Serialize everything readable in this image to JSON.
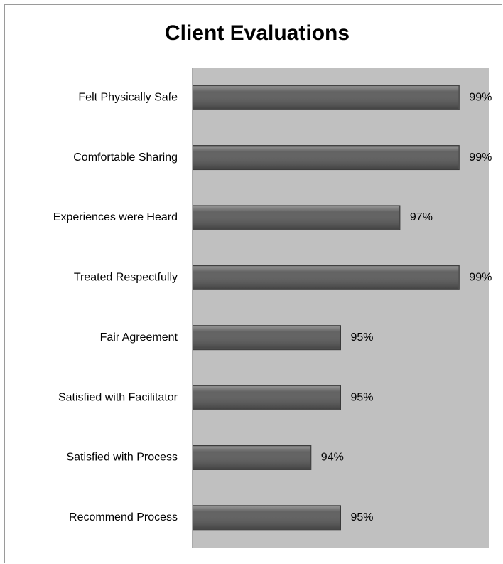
{
  "chart_data": {
    "type": "hbar",
    "title": "Client Evaluations",
    "categories": [
      "Felt Physically Safe",
      "Comfortable Sharing",
      "Experiences were Heard",
      "Treated Respectfully",
      "Fair Agreement",
      "Satisfied with Facilitator",
      "Satisfied with Process",
      "Recommend Process"
    ],
    "values": [
      99,
      99,
      97,
      99,
      95,
      95,
      94,
      95
    ],
    "value_labels": [
      "99%",
      "99%",
      "97%",
      "99%",
      "95%",
      "95%",
      "94%",
      "95%"
    ],
    "color": "#5a5a5a",
    "xlim": [
      90,
      100
    ]
  }
}
